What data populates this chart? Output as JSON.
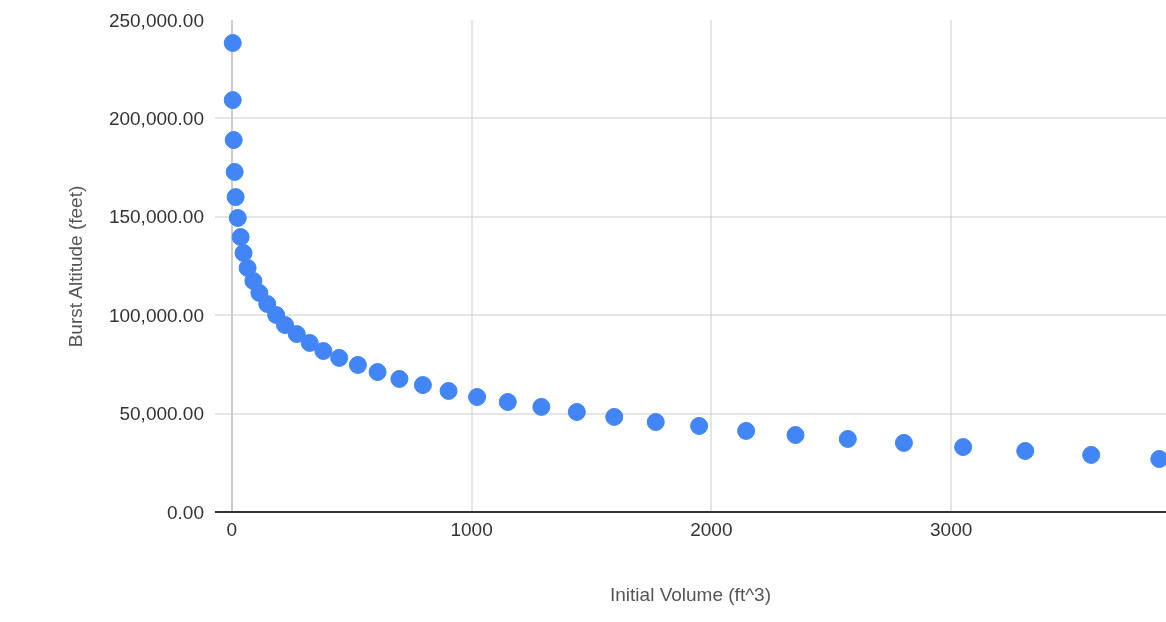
{
  "chart_data": {
    "type": "scatter",
    "xlabel": "Initial Volume (ft^3)",
    "ylabel": "Burst Altitude (feet)",
    "x": [
      4,
      4,
      8,
      12,
      16,
      25,
      37,
      49,
      66,
      90,
      115,
      148,
      185,
      222,
      271,
      325,
      382,
      448,
      526,
      608,
      699,
      797,
      904,
      1023,
      1151,
      1291,
      1439,
      1595,
      1768,
      1949,
      2145,
      2351,
      2569,
      2803,
      3050,
      3309,
      3584,
      3868
    ],
    "series": [
      {
        "color": "#4285f4",
        "values": [
          238300,
          209300,
          189000,
          172800,
          160000,
          149400,
          139700,
          131600,
          124000,
          117400,
          111300,
          105700,
          100100,
          95000,
          90400,
          85900,
          81800,
          78300,
          74700,
          71100,
          67600,
          64500,
          61500,
          58400,
          55900,
          53400,
          50800,
          48300,
          45700,
          43700,
          41200,
          39100,
          37100,
          35100,
          33000,
          31000,
          29000,
          26900
        ]
      }
    ],
    "xlim": [
      -70,
      3896
    ],
    "ylim": [
      0,
      250000
    ],
    "xticks": [
      0,
      1000,
      2000,
      3000
    ],
    "yticks": [
      {
        "value": 0,
        "label": "0.00"
      },
      {
        "value": 50000,
        "label": "50,000.00"
      },
      {
        "value": 100000,
        "label": "100,000.00"
      },
      {
        "value": 150000,
        "label": "150,000.00"
      },
      {
        "value": 200000,
        "label": "200,000.00"
      },
      {
        "value": 250000,
        "label": "250,000.00"
      }
    ],
    "grid": true,
    "marker": "circle"
  }
}
